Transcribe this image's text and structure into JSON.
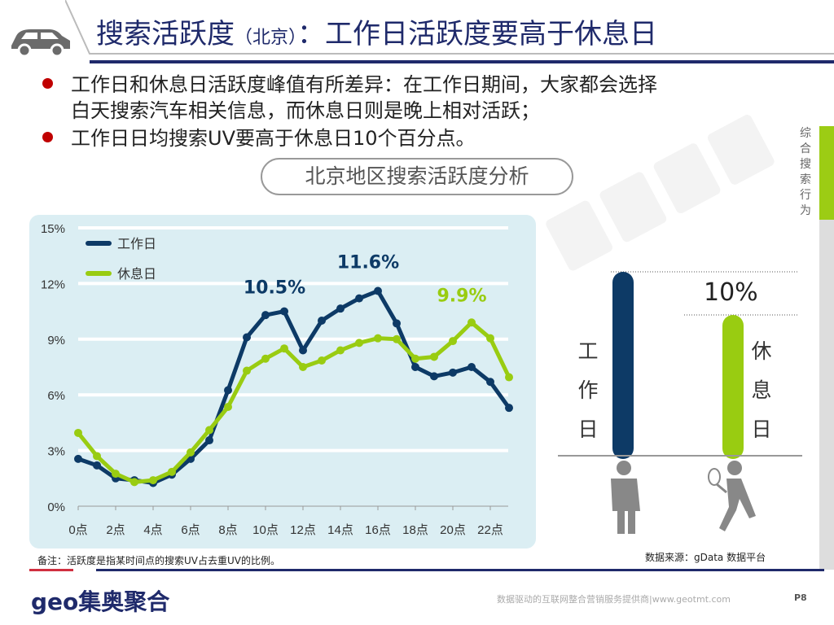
{
  "header": {
    "title_main": "搜索活跃度",
    "title_paren": "（北京）",
    "title_rest": "：工作日活跃度要高于休息日"
  },
  "bullets": [
    "工作日和休息日活跃度峰值有所差异：在工作日期间，大家都会选择",
    "白天搜索汽车相关信息，而休息日则是晚上相对活跃；",
    "工作日日均搜索UV要高于休息日10个百分点。"
  ],
  "subtitle": "北京地区搜索活跃度分析",
  "side_label": "综合搜索行为",
  "watermark": "集奥聚合",
  "colors": {
    "workday": "#0d3a66",
    "restday": "#99cc11",
    "title": "#1f2a6b",
    "bullet": "#c00000"
  },
  "chart_data": {
    "type": "line",
    "x": [
      "0点",
      "1点",
      "2点",
      "3点",
      "4点",
      "5点",
      "6点",
      "7点",
      "8点",
      "9点",
      "10点",
      "11点",
      "12点",
      "13点",
      "14点",
      "15点",
      "16点",
      "17点",
      "18点",
      "19点",
      "20点",
      "21点",
      "22点",
      "23点"
    ],
    "xticks": [
      "0点",
      "2点",
      "4点",
      "6点",
      "8点",
      "10点",
      "12点",
      "14点",
      "16点",
      "18点",
      "20点",
      "22点"
    ],
    "yticks": [
      "0%",
      "3%",
      "6%",
      "9%",
      "12%",
      "15%"
    ],
    "ylim": [
      0,
      15
    ],
    "grid": true,
    "legend": "top-left",
    "series": [
      {
        "name": "工作日",
        "color": "#0d3a66",
        "values": [
          2.55,
          2.2,
          1.5,
          1.4,
          1.25,
          1.7,
          2.55,
          3.55,
          6.25,
          9.1,
          10.3,
          10.5,
          8.4,
          10.0,
          10.65,
          11.2,
          11.6,
          9.85,
          7.5,
          7.0,
          7.2,
          7.5,
          6.7,
          5.3
        ]
      },
      {
        "name": "休息日",
        "color": "#99cc11",
        "values": [
          3.95,
          2.7,
          1.75,
          1.3,
          1.4,
          1.85,
          2.9,
          4.1,
          5.35,
          7.3,
          7.95,
          8.5,
          7.5,
          7.85,
          8.4,
          8.8,
          9.05,
          9.0,
          7.95,
          8.05,
          8.9,
          9.9,
          9.05,
          6.95
        ]
      }
    ],
    "annotations": [
      {
        "text": "10.5%",
        "hour": 11,
        "series": "工作日"
      },
      {
        "text": "11.6%",
        "hour": 16,
        "series": "工作日"
      },
      {
        "text": "9.9%",
        "hour": 21,
        "series": "休息日"
      }
    ]
  },
  "compare": {
    "workday_label": [
      "工",
      "作",
      "日"
    ],
    "restday_label": [
      "休",
      "息",
      "日"
    ],
    "diff_label": "10%"
  },
  "note": "备注：活跃度是指某时间点的搜索UV占去重UV的比例。",
  "source": "数据来源：gData  数据平台",
  "footer": {
    "logo": "geo集奥聚合",
    "tagline": "数据驱动的互联网整合营销服务提供商|www.geotmt.com",
    "page": "P8"
  }
}
